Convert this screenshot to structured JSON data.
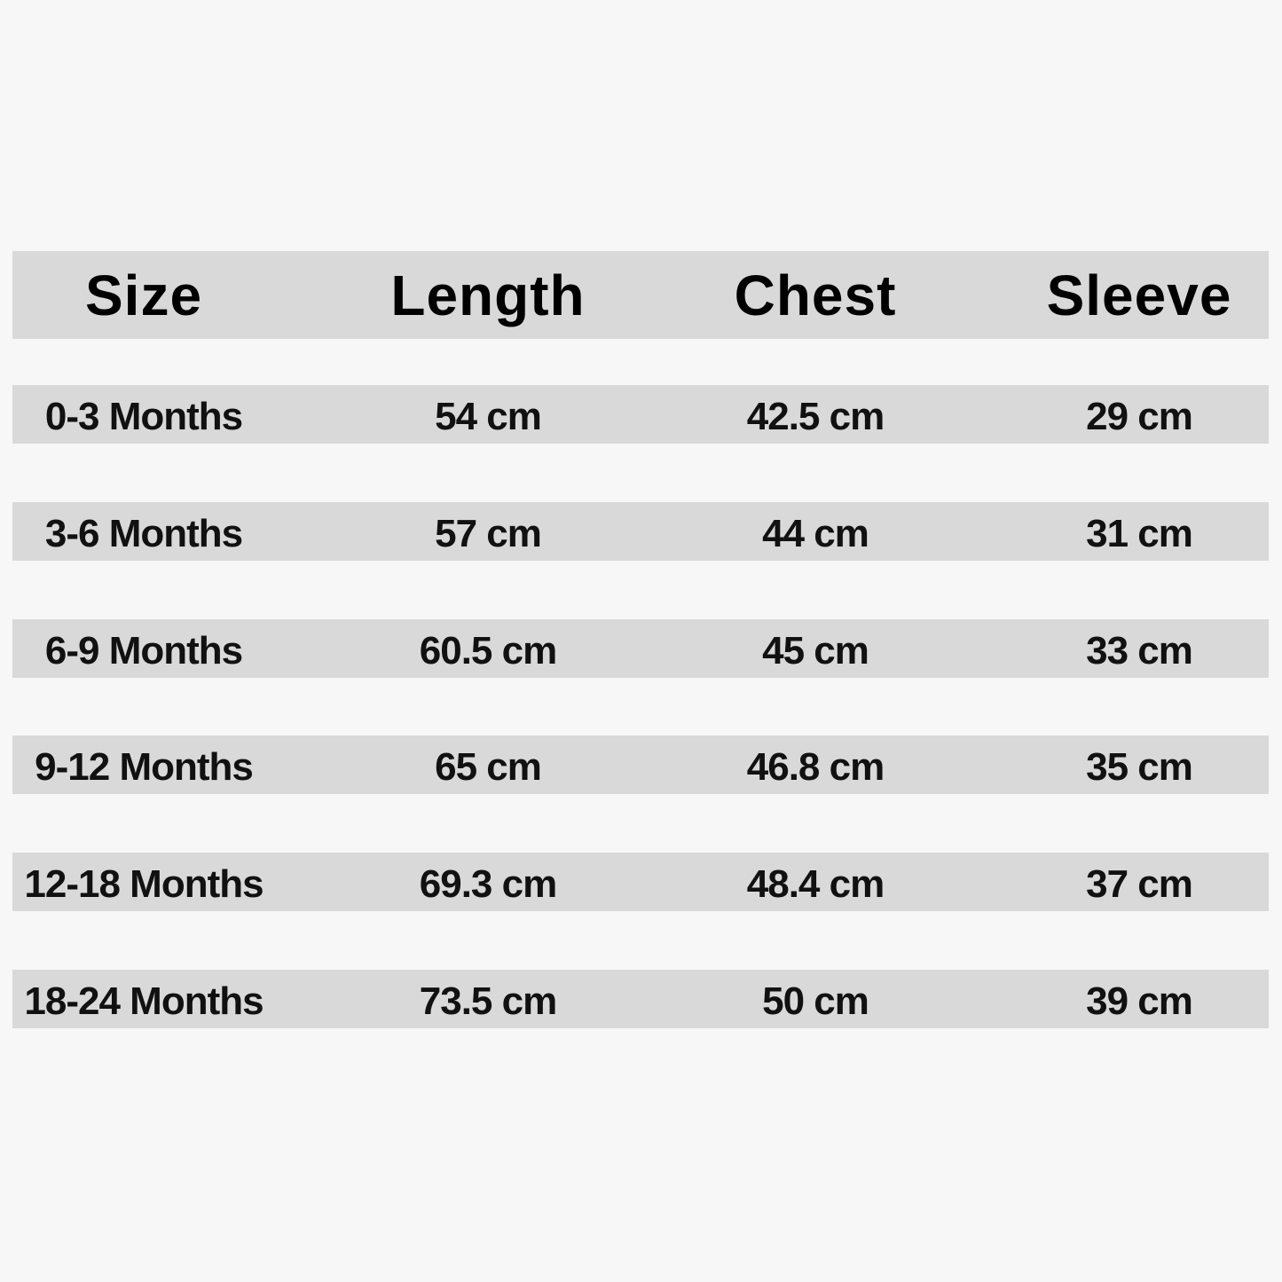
{
  "table": {
    "header": [
      "Size",
      "Length",
      "Chest",
      "Sleeve"
    ],
    "rows": [
      [
        "0-3 Months",
        "54 cm",
        "42.5 cm",
        "29 cm"
      ],
      [
        "3-6 Months",
        "57 cm",
        "44 cm",
        "31 cm"
      ],
      [
        "6-9 Months",
        "60.5 cm",
        "45 cm",
        "33 cm"
      ],
      [
        "9-12 Months",
        "65 cm",
        "46.8 cm",
        "35 cm"
      ],
      [
        "12-18 Months",
        "69.3 cm",
        "48.4 cm",
        "37 cm"
      ],
      [
        "18-24 Months",
        "73.5 cm",
        "50 cm",
        "39 cm"
      ]
    ]
  }
}
